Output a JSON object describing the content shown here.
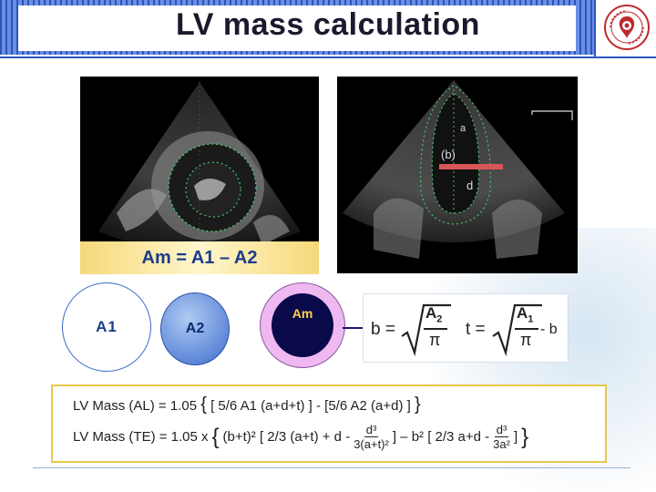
{
  "slide": {
    "title": "LV mass calculation"
  },
  "echo": {
    "left_caption": "Am = A1 – A2",
    "right_labels": {
      "a": "a",
      "b": "(b)",
      "d": "d"
    }
  },
  "circles": {
    "a1": "A1",
    "a2": "A2",
    "am": "Am"
  },
  "formula_b": {
    "b_lhs": "b =",
    "t_lhs": "t =",
    "a2": "A",
    "a2_sub": "2",
    "a1": "A",
    "a1_sub": "1",
    "pi": "π",
    "minus_b": "- b"
  },
  "lv_mass": {
    "al_prefix": "LV Mass (AL) = 1.05",
    "al_body": "[ 5/6 A1 (a+d+t) ] - [5/6 A2 (a+d) ]",
    "te_prefix": "LV Mass (TE) = 1.05 x",
    "te_part1": "(b+t)² [ 2/3 (a+t) + d -",
    "te_frac1_num": "d³",
    "te_frac1_den": "3(a+t)²",
    "te_part2": "] – b² [ 2/3 a+d -",
    "te_frac2_num": "d³",
    "te_frac2_den": "3a²",
    "te_close": "]"
  },
  "colors": {
    "header_stripe": "#2a55c0",
    "title_text": "#1a1a2e",
    "caption_text": "#1c3c8c",
    "caption_band": "#f5d878",
    "am_outer": "#f0b8f0",
    "am_inner": "#0a0a4a",
    "am_text": "#ffd24a",
    "lv_box_border": "#e6c84a"
  }
}
